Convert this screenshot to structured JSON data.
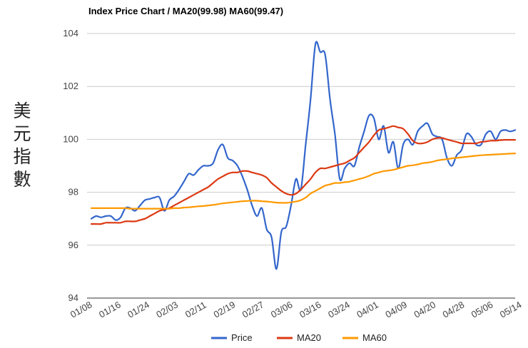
{
  "chart_data": {
    "type": "line",
    "title": "Index Price Chart / MA20(99.98) MA60(99.47)",
    "ylabel_chars": [
      "美",
      "元",
      "指",
      "數"
    ],
    "xlabel": "",
    "ylim": [
      94,
      104
    ],
    "yticks": [
      94,
      96,
      98,
      100,
      102,
      104
    ],
    "x_tick_labels": [
      "01/08",
      "01/16",
      "01/24",
      "02/03",
      "02/11",
      "02/19",
      "02/27",
      "03/06",
      "03/16",
      "03/24",
      "04/01",
      "04/09",
      "04/20",
      "04/28",
      "05/06",
      "05/14"
    ],
    "num_points": 88,
    "legend_position": "bottom",
    "series": [
      {
        "name": "Price",
        "color": "#3366cc",
        "values": [
          97.0,
          97.1,
          97.05,
          97.1,
          97.1,
          96.95,
          97.05,
          97.4,
          97.4,
          97.3,
          97.5,
          97.7,
          97.75,
          97.8,
          97.8,
          97.3,
          97.7,
          97.85,
          98.1,
          98.4,
          98.7,
          98.65,
          98.85,
          99.0,
          99.0,
          99.1,
          99.6,
          99.8,
          99.3,
          99.2,
          99.0,
          98.6,
          98.1,
          97.5,
          97.1,
          97.4,
          96.6,
          96.3,
          95.1,
          96.5,
          96.7,
          97.5,
          98.5,
          98.1,
          99.8,
          101.5,
          103.6,
          103.3,
          103.2,
          101.5,
          100.2,
          98.5,
          98.9,
          99.1,
          99.0,
          99.7,
          100.3,
          100.9,
          100.8,
          100.0,
          100.5,
          99.5,
          99.9,
          98.9,
          99.8,
          100.0,
          99.8,
          100.3,
          100.5,
          100.6,
          100.2,
          100.1,
          100.0,
          99.3,
          99.0,
          99.4,
          99.6,
          100.2,
          100.1,
          99.8,
          99.8,
          100.2,
          100.3,
          100.0,
          100.3,
          100.35,
          100.3,
          100.35
        ]
      },
      {
        "name": "MA20",
        "color": "#dc3912",
        "values": [
          96.8,
          96.8,
          96.8,
          96.85,
          96.85,
          96.85,
          96.85,
          96.9,
          96.9,
          96.9,
          96.95,
          97.0,
          97.1,
          97.2,
          97.3,
          97.35,
          97.4,
          97.5,
          97.6,
          97.7,
          97.8,
          97.9,
          98.0,
          98.1,
          98.2,
          98.35,
          98.5,
          98.6,
          98.7,
          98.75,
          98.75,
          98.8,
          98.8,
          98.75,
          98.7,
          98.65,
          98.55,
          98.35,
          98.2,
          98.05,
          97.95,
          97.9,
          97.95,
          98.1,
          98.3,
          98.5,
          98.75,
          98.9,
          98.9,
          98.95,
          99.0,
          99.05,
          99.1,
          99.2,
          99.3,
          99.5,
          99.7,
          99.9,
          100.15,
          100.35,
          100.4,
          100.45,
          100.5,
          100.45,
          100.4,
          100.2,
          99.95,
          99.85,
          99.85,
          99.9,
          100.0,
          100.05,
          100.05,
          100.0,
          99.95,
          99.9,
          99.85,
          99.85,
          99.85,
          99.85,
          99.9,
          99.92,
          99.95,
          99.95,
          99.97,
          99.98,
          99.98,
          99.98
        ]
      },
      {
        "name": "MA60",
        "color": "#ff9900",
        "values": [
          97.4,
          97.4,
          97.4,
          97.4,
          97.4,
          97.4,
          97.4,
          97.4,
          97.38,
          97.38,
          97.38,
          97.38,
          97.38,
          97.38,
          97.38,
          97.38,
          97.38,
          97.4,
          97.4,
          97.42,
          97.43,
          97.45,
          97.47,
          97.48,
          97.5,
          97.52,
          97.55,
          97.58,
          97.6,
          97.62,
          97.64,
          97.66,
          97.67,
          97.68,
          97.68,
          97.66,
          97.65,
          97.63,
          97.61,
          97.6,
          97.6,
          97.62,
          97.65,
          97.7,
          97.8,
          97.95,
          98.05,
          98.15,
          98.25,
          98.3,
          98.35,
          98.35,
          98.38,
          98.4,
          98.45,
          98.5,
          98.55,
          98.62,
          98.7,
          98.75,
          98.8,
          98.82,
          98.85,
          98.9,
          98.95,
          99.0,
          99.02,
          99.05,
          99.1,
          99.12,
          99.15,
          99.2,
          99.23,
          99.25,
          99.28,
          99.3,
          99.32,
          99.34,
          99.36,
          99.38,
          99.4,
          99.41,
          99.42,
          99.43,
          99.44,
          99.45,
          99.46,
          99.47
        ]
      }
    ]
  }
}
